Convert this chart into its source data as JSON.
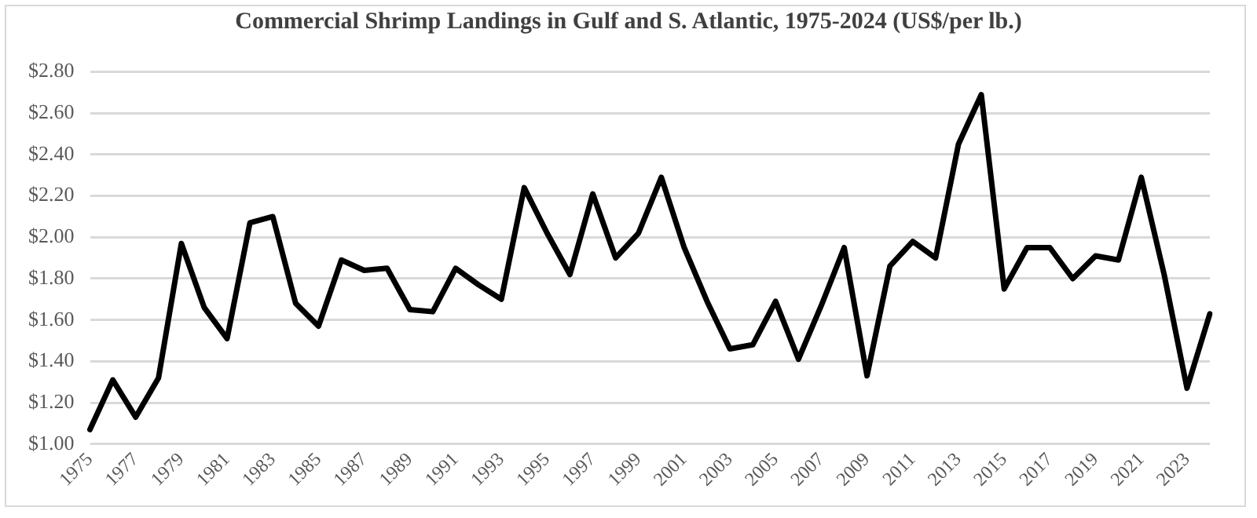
{
  "chart_data": {
    "type": "line",
    "title": "Commercial Shrimp Landings in Gulf and S. Atlantic, 1975-2024 (US$/per lb.)",
    "categories": [
      "1975",
      null,
      "1977",
      null,
      "1979",
      null,
      "1981",
      null,
      "1983",
      null,
      "1985",
      null,
      "1987",
      null,
      "1989",
      null,
      "1991",
      null,
      "1993",
      null,
      "1995",
      null,
      "1997",
      null,
      "1999",
      null,
      "2001",
      null,
      "2003",
      null,
      "2005",
      null,
      "2007",
      null,
      "2009",
      null,
      "2011",
      null,
      "2013",
      null,
      "2015",
      null,
      "2017",
      null,
      "2019",
      null,
      "2021",
      null,
      "2023",
      null
    ],
    "series": [
      {
        "color": "#000000",
        "values": [
          1.07,
          1.31,
          1.13,
          1.32,
          1.97,
          1.66,
          1.51,
          2.07,
          2.1,
          1.68,
          1.57,
          1.89,
          1.84,
          1.85,
          1.65,
          1.64,
          1.85,
          1.77,
          1.7,
          2.24,
          2.02,
          1.82,
          2.21,
          1.9,
          2.02,
          2.29,
          1.95,
          1.69,
          1.46,
          1.48,
          1.69,
          1.41,
          1.67,
          1.95,
          1.33,
          1.86,
          1.98,
          1.9,
          2.45,
          2.69,
          1.75,
          1.95,
          1.95,
          1.8,
          1.91,
          1.89,
          2.29,
          1.82,
          1.27,
          1.63
        ]
      }
    ],
    "ylim": [
      1.0,
      2.8
    ],
    "yticks": [
      {
        "value": 1.0,
        "label": "$1.00"
      },
      {
        "value": 1.2,
        "label": "$1.20"
      },
      {
        "value": 1.4,
        "label": "$1.40"
      },
      {
        "value": 1.6,
        "label": "$1.60"
      },
      {
        "value": 1.8,
        "label": "$1.80"
      },
      {
        "value": 2.0,
        "label": "$2.00"
      },
      {
        "value": 2.2,
        "label": "$2.20"
      },
      {
        "value": 2.4,
        "label": "$2.40"
      },
      {
        "value": 2.6,
        "label": "$2.60"
      },
      {
        "value": 2.8,
        "label": "$2.80"
      }
    ],
    "grid": "y",
    "legend": false,
    "marker": "none",
    "line_style": "solid"
  }
}
